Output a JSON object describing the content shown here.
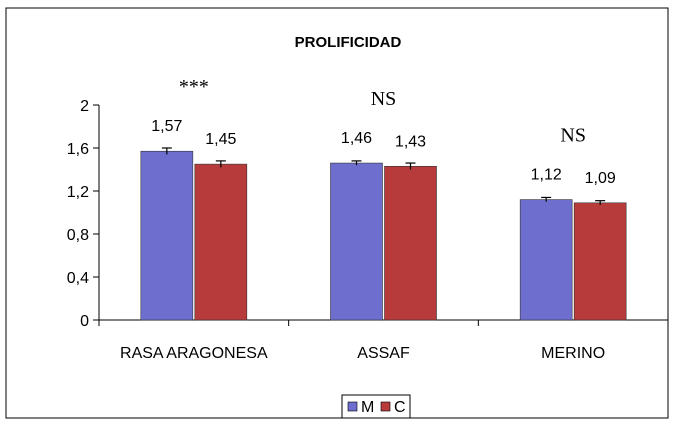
{
  "chart_data": {
    "type": "bar",
    "title": "PROLIFICIDAD",
    "xlabel": "",
    "ylabel": "",
    "categories": [
      "RASA ARAGONESA",
      "ASSAF",
      "MERINO"
    ],
    "series": [
      {
        "name": "M",
        "color": "#6e6ecf",
        "values": [
          1.57,
          1.46,
          1.12
        ],
        "errors": [
          0.03,
          0.02,
          0.02
        ]
      },
      {
        "name": "C",
        "color": "#b83b3b",
        "values": [
          1.45,
          1.43,
          1.09
        ],
        "errors": [
          0.03,
          0.03,
          0.02
        ]
      }
    ],
    "value_labels": [
      [
        "1,57",
        "1,46",
        "1,12"
      ],
      [
        "1,45",
        "1,43",
        "1,09"
      ]
    ],
    "significance": [
      "***",
      "NS",
      "NS"
    ],
    "ylim": [
      0,
      2
    ],
    "yticks": [
      0,
      0.4,
      0.8,
      1.2,
      1.6,
      2
    ],
    "ytick_labels": [
      "0",
      "0,4",
      "0,8",
      "1,2",
      "1,6",
      "2"
    ],
    "grid": false,
    "legend_position": "bottom-center"
  }
}
